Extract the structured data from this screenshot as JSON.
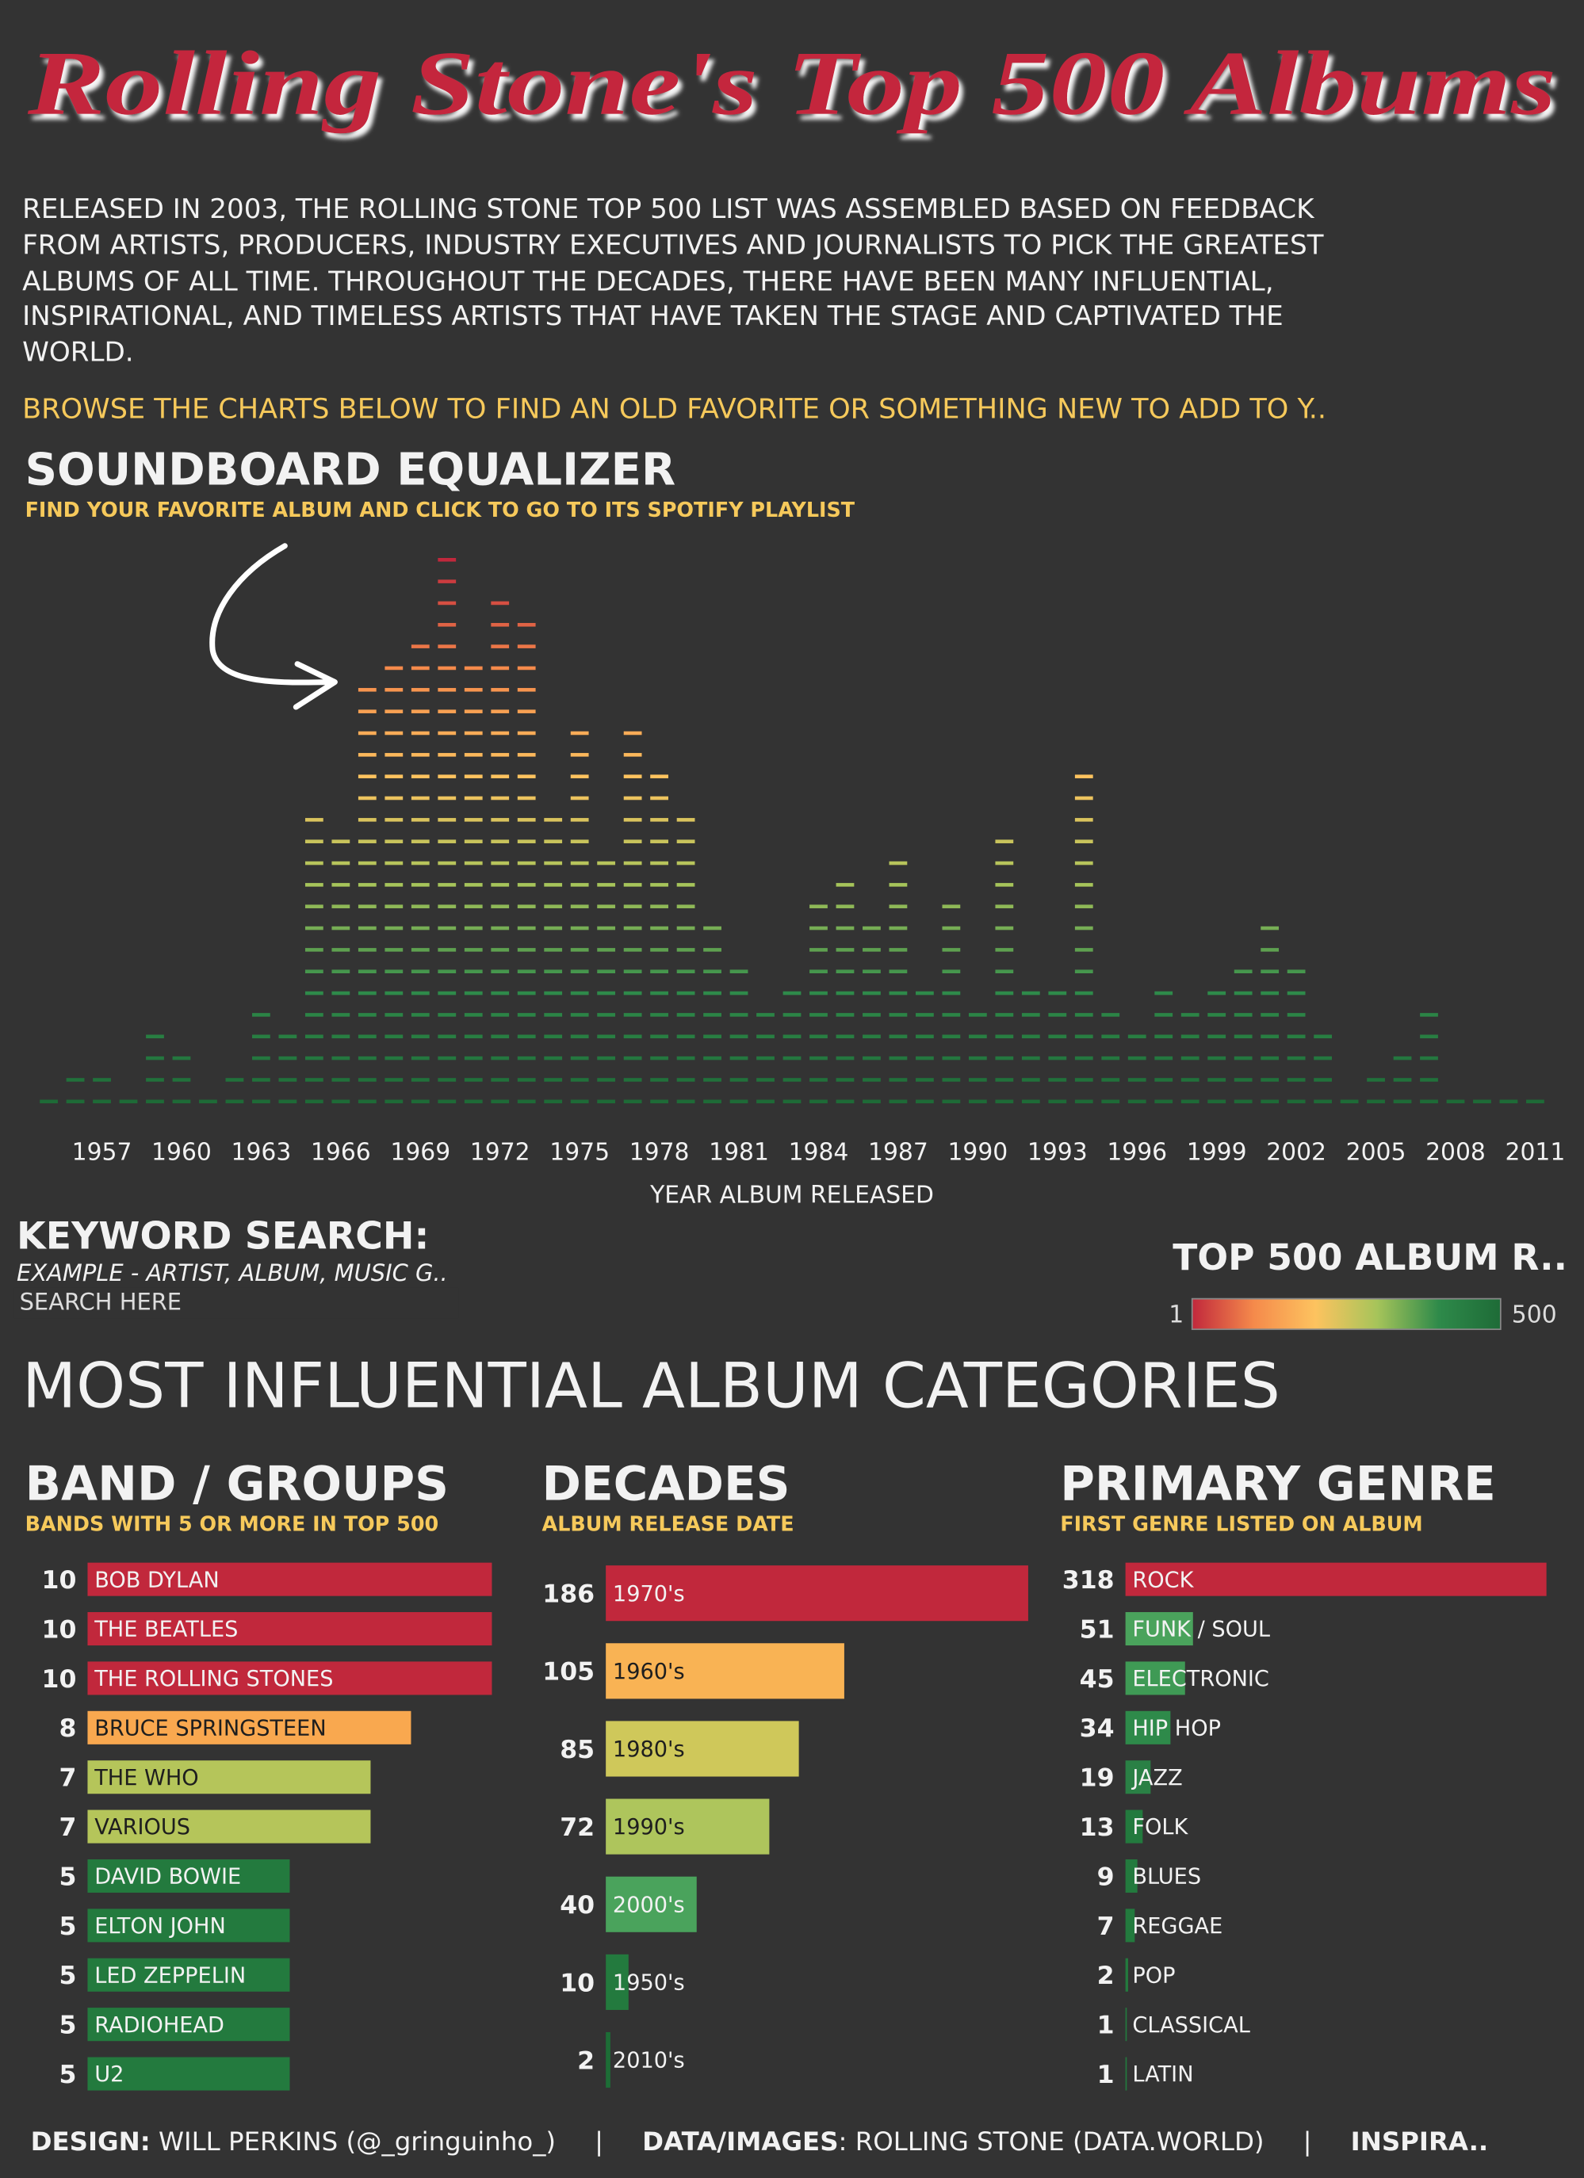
{
  "header": {
    "title": "Rolling Stone's Top 500 Albums",
    "intro": [
      "RELEASED IN 2003, THE ROLLING STONE TOP 500 LIST WAS ASSEMBLED BASED ON FEEDBACK",
      "FROM ARTISTS, PRODUCERS, INDUSTRY EXECUTIVES AND JOURNALISTS TO PICK THE GREATEST",
      "ALBUMS OF ALL TIME. THROUGHOUT THE DECADES, THERE HAVE BEEN MANY INFLUENTIAL,",
      "INSPIRATIONAL, AND TIMELESS ARTISTS THAT HAVE TAKEN THE STAGE AND CAPTIVATED THE",
      "WORLD."
    ],
    "browse": "BROWSE THE CHARTS BELOW TO FIND AN OLD FAVORITE OR SOMETHING NEW TO ADD TO Y.."
  },
  "chart_data": [
    {
      "type": "equalizer",
      "title": "SOUNDBOARD EQUALIZER",
      "subtitle": "FIND YOUR FAVORITE ALBUM AND CLICK TO GO TO ITS SPOTIFY PLAYLIST",
      "x": [
        1955,
        1956,
        1957,
        1958,
        1959,
        1960,
        1961,
        1962,
        1963,
        1964,
        1965,
        1966,
        1967,
        1968,
        1969,
        1970,
        1971,
        1972,
        1973,
        1974,
        1975,
        1976,
        1977,
        1978,
        1979,
        1980,
        1981,
        1982,
        1983,
        1984,
        1985,
        1986,
        1987,
        1988,
        1989,
        1990,
        1991,
        1992,
        1993,
        1994,
        1995,
        1996,
        1997,
        1998,
        1999,
        2000,
        2001,
        2002,
        2003,
        2004,
        2005,
        2006,
        2007,
        2008,
        2009,
        2010,
        2011
      ],
      "values": [
        1,
        2,
        2,
        1,
        4,
        3,
        1,
        2,
        5,
        4,
        14,
        13,
        20,
        21,
        22,
        26,
        21,
        24,
        23,
        14,
        18,
        12,
        18,
        16,
        14,
        9,
        7,
        5,
        6,
        10,
        11,
        9,
        12,
        6,
        10,
        5,
        13,
        6,
        6,
        16,
        5,
        4,
        6,
        5,
        6,
        7,
        9,
        7,
        4,
        1,
        2,
        3,
        5,
        1,
        1,
        1,
        1
      ],
      "xlim": [
        1954,
        2012
      ],
      "xticks": [
        1957,
        1960,
        1963,
        1966,
        1969,
        1972,
        1975,
        1978,
        1981,
        1984,
        1987,
        1990,
        1993,
        1996,
        1999,
        2002,
        2005,
        2008,
        2011
      ],
      "xlabel": "YEAR ALBUM RELEASED"
    },
    {
      "type": "barh",
      "title": "BAND / GROUPS",
      "subtitle": "BANDS WITH 5 OR MORE IN TOP 500",
      "categories": [
        "BOB DYLAN",
        "THE BEATLES",
        "THE ROLLING STONES",
        "BRUCE SPRINGSTEEN",
        "THE WHO",
        "VARIOUS",
        "DAVID BOWIE",
        "ELTON JOHN",
        "LED ZEPPELIN",
        "RADIOHEAD",
        "U2"
      ],
      "values": [
        10,
        10,
        10,
        8,
        7,
        7,
        5,
        5,
        5,
        5,
        5
      ],
      "colors": [
        "#c1283c",
        "#c1283c",
        "#c1283c",
        "#f9a84f",
        "#b5c55a",
        "#b5c55a",
        "#237a3e",
        "#237a3e",
        "#237a3e",
        "#237a3e",
        "#237a3e"
      ]
    },
    {
      "type": "barh",
      "title": "DECADES",
      "subtitle": "ALBUM RELEASE DATE",
      "categories": [
        "1970's",
        "1960's",
        "1980's",
        "1990's",
        "2000's",
        "1950's",
        "2010's"
      ],
      "values": [
        186,
        105,
        85,
        72,
        40,
        10,
        2
      ],
      "colors": [
        "#c1283c",
        "#f9b354",
        "#cfc85a",
        "#aec55c",
        "#4aa35c",
        "#237a3e",
        "#1d6d36"
      ]
    },
    {
      "type": "barh",
      "title": "PRIMARY GENRE",
      "subtitle": "FIRST GENRE LISTED ON ALBUM",
      "categories": [
        "ROCK",
        "FUNK / SOUL",
        "ELECTRONIC",
        "HIP HOP",
        "JAZZ",
        "FOLK",
        "BLUES",
        "REGGAE",
        "POP",
        "CLASSICAL",
        "LATIN"
      ],
      "values": [
        318,
        51,
        45,
        34,
        19,
        13,
        9,
        7,
        2,
        1,
        1
      ],
      "colors": [
        "#c1283c",
        "#4aa35c",
        "#3f9a55",
        "#2e8a4a",
        "#2a8045",
        "#237a3e",
        "#237a3e",
        "#237a3e",
        "#237a3e",
        "#237a3e",
        "#237a3e"
      ]
    }
  ],
  "search": {
    "title": "KEYWORD SEARCH:",
    "example": "EXAMPLE - ARTIST, ALBUM, MUSIC G..",
    "placeholder": "SEARCH HERE"
  },
  "color_legend": {
    "title": "TOP 500 ALBUM R..",
    "min": 1,
    "max": 500,
    "colors": [
      "#c1283c",
      "#f58a4b",
      "#fdc35f",
      "#a6c45a",
      "#2e8a4a",
      "#1e6b37"
    ]
  },
  "section_title": "MOST INFLUENTIAL ALBUM CATEGORIES",
  "footer": {
    "design_label": "DESIGN:",
    "design": " WILL PERKINS (@_gringuinho_)",
    "separator": "|",
    "data_label": "DATA/IMAGES",
    "data": ": ROLLING STONE (DATA.WORLD)",
    "inspiration_label": "INSPIRA.."
  }
}
